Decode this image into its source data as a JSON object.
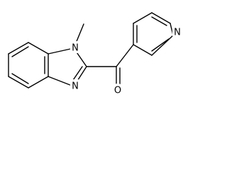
{
  "atoms": {
    "methyl_n": "N",
    "imine_n": "N",
    "pyridine_n": "N",
    "carbonyl_o": "O"
  }
}
